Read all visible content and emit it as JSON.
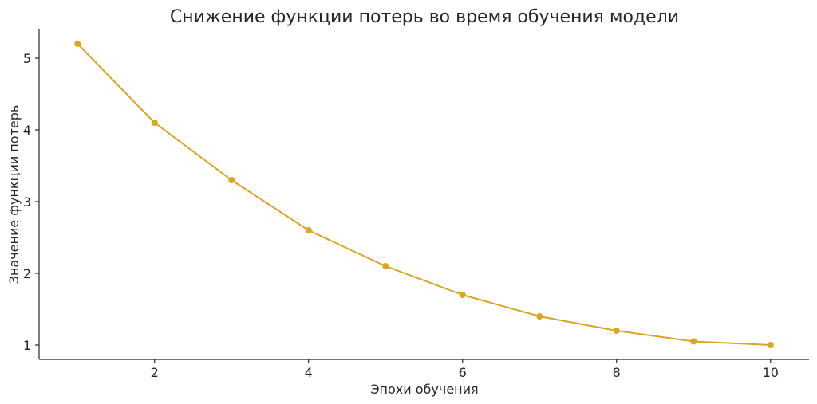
{
  "chart_data": {
    "type": "line",
    "title": "Снижение функции потерь во время обучения модели",
    "xlabel": "Эпохи обучения",
    "ylabel": "Значение функции потерь",
    "xlim": [
      0.5,
      10.5
    ],
    "ylim": [
      0.8,
      5.4
    ],
    "xticks": [
      2,
      4,
      6,
      8,
      10
    ],
    "yticks": [
      1,
      2,
      3,
      4,
      5
    ],
    "grid": false,
    "legend": "none",
    "series": [
      {
        "color": "#DAA520",
        "x": [
          1,
          2,
          3,
          4,
          5,
          6,
          7,
          8,
          9,
          10
        ],
        "y": [
          5.2,
          4.1,
          3.3,
          2.6,
          2.1,
          1.7,
          1.4,
          1.2,
          1.05,
          1.0
        ]
      }
    ]
  }
}
